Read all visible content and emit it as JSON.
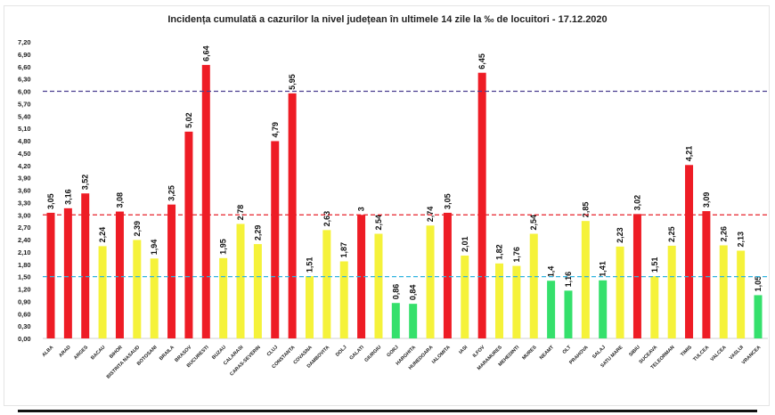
{
  "chart_data": {
    "type": "bar",
    "title": "Incidența cumulată a cazurilor la nivel județean în ultimele 14 zile la ‰ de locuitori - 17.12.2020",
    "categories": [
      "ALBA",
      "ARAD",
      "ARGES",
      "BACAU",
      "BIHOR",
      "BISTRITA NASAUD",
      "BOTOSANI",
      "BRAILA",
      "BRASOV",
      "BUCURESTI",
      "BUZAU",
      "CALARASI",
      "CARAS-SEVERIN",
      "CLUJ",
      "CONSTANTA",
      "COVASNA",
      "DAMBOVITA",
      "DOLJ",
      "GALATI",
      "GIURGIU",
      "GORJ",
      "HARGHITA",
      "HUNEDOARA",
      "IALOMITA",
      "IASI",
      "ILFOV",
      "MARAMURES",
      "MEHEDINTI",
      "MURES",
      "NEAMT",
      "OLT",
      "PRAHOVA",
      "SALAJ",
      "SATU MARE",
      "SIBIU",
      "SUCEAVA",
      "TELEORMAN",
      "TIMIS",
      "TULCEA",
      "VALCEA",
      "VASLUI",
      "VRANCEA"
    ],
    "values": [
      3.05,
      3.16,
      3.52,
      2.24,
      3.08,
      2.39,
      1.94,
      3.25,
      5.02,
      6.64,
      1.95,
      2.78,
      2.29,
      4.79,
      5.95,
      1.51,
      2.63,
      1.87,
      3,
      2.54,
      0.86,
      0.84,
      2.74,
      3.05,
      2.01,
      6.45,
      1.82,
      1.76,
      2.54,
      1.4,
      1.16,
      2.85,
      1.41,
      2.23,
      3.02,
      1.51,
      2.25,
      4.21,
      3.09,
      2.26,
      2.13,
      1.05
    ],
    "data_labels": [
      "3,05",
      "3,16",
      "3,52",
      "2,24",
      "3,08",
      "2,39",
      "1,94",
      "3,25",
      "5,02",
      "6,64",
      "1,95",
      "2,78",
      "2,29",
      "4,79",
      "5,95",
      "1,51",
      "2,63",
      "1,87",
      "3",
      "2,54",
      "0,86",
      "0,84",
      "2,74",
      "3,05",
      "2,01",
      "6,45",
      "1,82",
      "1,76",
      "2,54",
      "1,4",
      "1,16",
      "2,85",
      "1,41",
      "2,23",
      "3,02",
      "1,51",
      "2,25",
      "4,21",
      "3,09",
      "2,26",
      "2,13",
      "1,05"
    ],
    "ylim": [
      0,
      7.2
    ],
    "y_ticks": [
      "0,00",
      "0,30",
      "0,60",
      "0,90",
      "1,20",
      "1,50",
      "1,80",
      "2,10",
      "2,40",
      "2,70",
      "3,00",
      "3,30",
      "3,60",
      "3,90",
      "4,20",
      "4,50",
      "4,80",
      "5,10",
      "5,40",
      "5,70",
      "6,00",
      "6,30",
      "6,60",
      "6,90",
      "7,20"
    ],
    "thresholds": [
      {
        "value": 6.0,
        "color": "#4b3f8f",
        "style": "dashed"
      },
      {
        "value": 3.0,
        "color": "#e8202a",
        "style": "dashed"
      },
      {
        "value": 1.5,
        "color": "#2fb4e0",
        "style": "dashed"
      }
    ],
    "colors": {
      "high": "#ee1c25",
      "medium": "#f5f23a",
      "low": "#35e06c"
    },
    "grid": false,
    "legend": "none"
  }
}
